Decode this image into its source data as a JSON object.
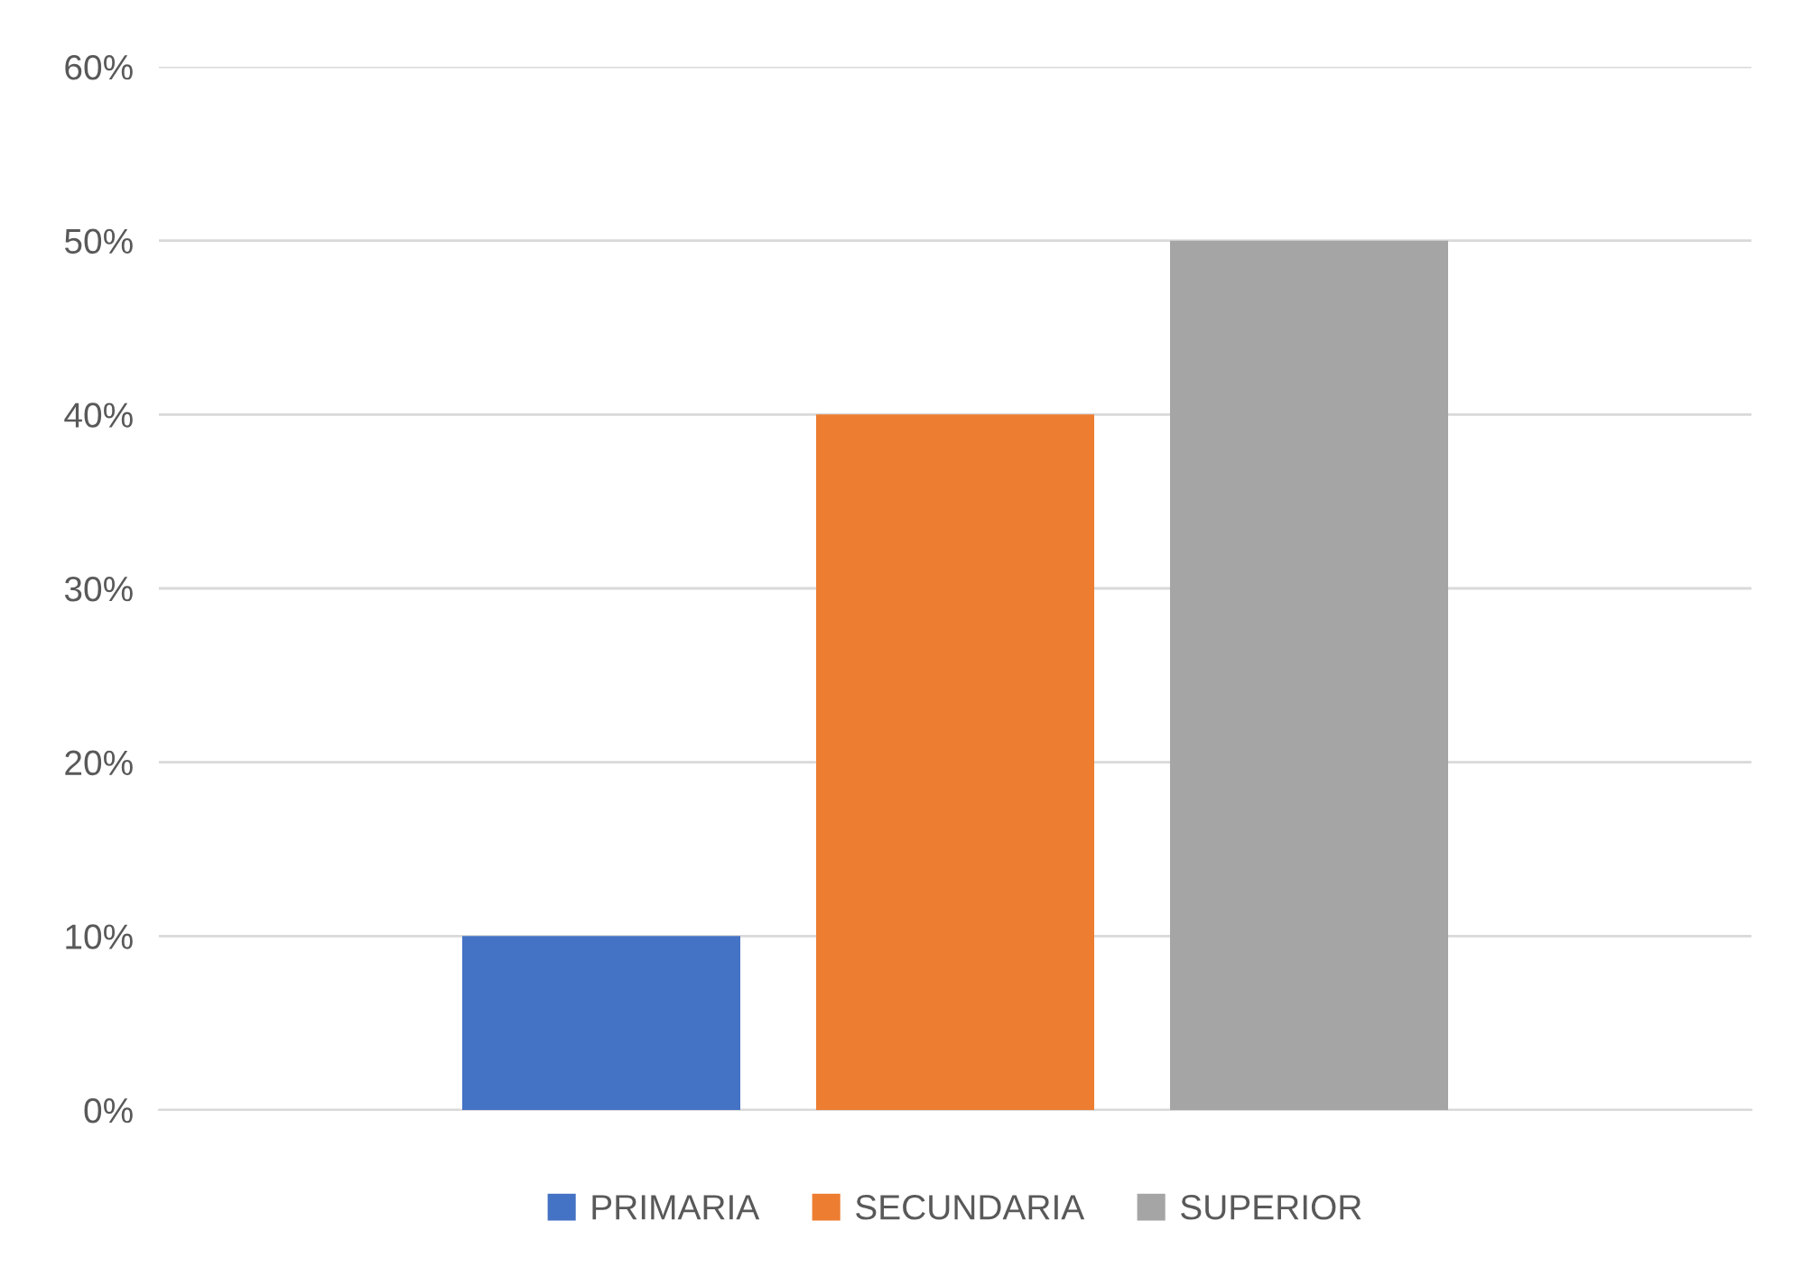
{
  "chart_data": {
    "type": "bar",
    "categories": [
      null
    ],
    "series": [
      {
        "name": "PRIMARIA",
        "color": "#4472c4",
        "values": [
          10
        ]
      },
      {
        "name": "SECUNDARIA",
        "color": "#ed7d31",
        "values": [
          40
        ]
      },
      {
        "name": "SUPERIOR",
        "color": "#a5a5a5",
        "values": [
          50
        ]
      }
    ],
    "ylim": [
      0,
      60
    ],
    "yticks": [
      {
        "value": 0,
        "label": "0%"
      },
      {
        "value": 10,
        "label": "10%"
      },
      {
        "value": 20,
        "label": "20%"
      },
      {
        "value": 30,
        "label": "30%"
      },
      {
        "value": 40,
        "label": "40%"
      },
      {
        "value": 50,
        "label": "50%"
      },
      {
        "value": 60,
        "label": "60%"
      }
    ],
    "grid": "y",
    "legend": "bottom"
  }
}
